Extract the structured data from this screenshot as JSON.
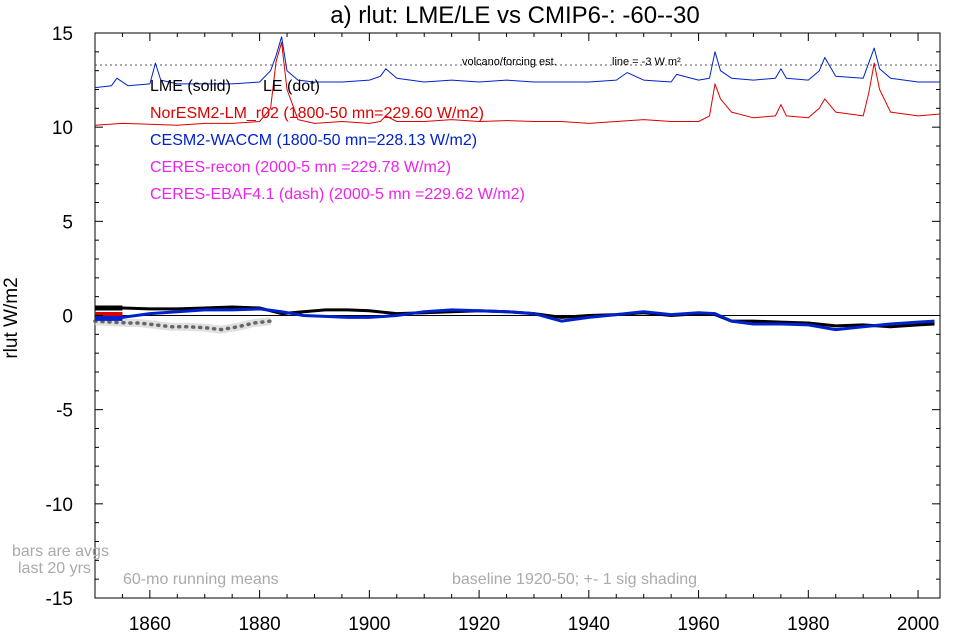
{
  "chart_data": {
    "type": "line",
    "title": "a) rlut: LME/LE vs CMIP6-: -60--30",
    "ylabel": "rlut W/m2",
    "xlim": [
      1850,
      2004
    ],
    "ylim": [
      -15,
      15
    ],
    "x_ticks": [
      1860,
      1880,
      1900,
      1920,
      1940,
      1960,
      1980,
      2000
    ],
    "y_ticks": [
      15,
      10,
      5,
      0,
      -5,
      -10,
      -15
    ],
    "grid": false,
    "legend": {
      "lme": "LME (solid)",
      "le": "LE (dot)",
      "noresm": "NorESM2-LM_r02 (1800-50 mn=229.60 W/m2)",
      "cesm": "CESM2-WACCM (1800-50 mn=228.13 W/m2)",
      "ceres_recon": "CERES-recon (2000-5 mn =229.78 W/m2)",
      "ceres_ebaf": "CERES-EBAF4.1 (dash) (2000-5 mn =229.62 W/m2)"
    },
    "annotations": {
      "volcano": "volcano/forcing est.",
      "line_label": "line = -3 W m²",
      "bars_line1": "bars are avgs",
      "bars_line2": "last 20 yrs",
      "running": "60-mo running means",
      "baseline": "baseline 1920-50; +- 1 sig shading"
    },
    "reference_lines": {
      "zero": 0,
      "volcano_line": 13.3
    },
    "colors": {
      "lme": "#000000",
      "le": "#666666",
      "noresm": "#dd0000",
      "cesm": "#0022cc",
      "ceres": "#ee22ee",
      "annotation_gray": "#aaaaaa"
    },
    "series": [
      {
        "name": "LME (solid)",
        "color": "#000000",
        "style": "solid",
        "x": [
          1850,
          1855,
          1860,
          1865,
          1870,
          1875,
          1880,
          1884,
          1888,
          1892,
          1896,
          1900,
          1905,
          1910,
          1915,
          1920,
          1925,
          1930,
          1935,
          1940,
          1945,
          1950,
          1955,
          1960,
          1963,
          1966,
          1970,
          1975,
          1980,
          1985,
          1990,
          1995,
          2000,
          2003
        ],
        "y": [
          0.4,
          0.4,
          0.35,
          0.35,
          0.4,
          0.45,
          0.4,
          0.1,
          0.2,
          0.3,
          0.3,
          0.25,
          0.1,
          0.15,
          0.2,
          0.25,
          0.2,
          0.1,
          -0.1,
          0.0,
          0.05,
          0.15,
          0.0,
          0.1,
          0.05,
          -0.3,
          -0.3,
          -0.35,
          -0.4,
          -0.55,
          -0.5,
          -0.6,
          -0.5,
          -0.45
        ]
      },
      {
        "name": "LE (dot)",
        "color": "#666666",
        "style": "dot",
        "x": [
          1850,
          1853,
          1856,
          1858,
          1861,
          1864,
          1867,
          1870,
          1873,
          1876,
          1879,
          1882
        ],
        "y": [
          -0.3,
          -0.35,
          -0.4,
          -0.4,
          -0.5,
          -0.6,
          -0.6,
          -0.65,
          -0.75,
          -0.6,
          -0.4,
          -0.3
        ]
      },
      {
        "name": "CESM2-WACCM",
        "color": "#0022cc",
        "style": "solid-thick",
        "x": [
          1850,
          1855,
          1860,
          1865,
          1870,
          1875,
          1880,
          1884,
          1888,
          1892,
          1896,
          1900,
          1905,
          1910,
          1915,
          1920,
          1925,
          1930,
          1935,
          1940,
          1945,
          1950,
          1955,
          1960,
          1963,
          1966,
          1970,
          1975,
          1980,
          1985,
          1990,
          1995,
          2000,
          2003
        ],
        "y": [
          -0.2,
          -0.1,
          0.1,
          0.2,
          0.3,
          0.3,
          0.35,
          0.2,
          0.0,
          -0.05,
          -0.1,
          -0.1,
          0.0,
          0.2,
          0.3,
          0.25,
          0.2,
          0.1,
          -0.3,
          -0.1,
          0.05,
          0.2,
          0.05,
          0.15,
          0.1,
          -0.3,
          -0.45,
          -0.45,
          -0.5,
          -0.75,
          -0.6,
          -0.45,
          -0.35,
          -0.3
        ]
      },
      {
        "name": "NorESM2-LM_r02",
        "color": "#dd0000",
        "style": "solid-thin",
        "x": [
          1850,
          1855,
          1860,
          1865,
          1870,
          1875,
          1880,
          1882,
          1883,
          1884,
          1885,
          1887,
          1890,
          1895,
          1900,
          1902,
          1903,
          1905,
          1910,
          1915,
          1920,
          1925,
          1930,
          1935,
          1940,
          1945,
          1950,
          1955,
          1960,
          1962,
          1963,
          1964,
          1966,
          1970,
          1974,
          1975,
          1976,
          1980,
          1982,
          1983,
          1985,
          1990,
          1991,
          1992,
          1993,
          1995,
          2000,
          2004
        ],
        "y": [
          10.1,
          10.2,
          10.15,
          10.1,
          10.2,
          10.2,
          10.3,
          11.0,
          13.5,
          14.5,
          12.0,
          10.4,
          10.2,
          10.3,
          10.2,
          10.3,
          10.6,
          10.3,
          10.3,
          10.4,
          10.3,
          10.35,
          10.3,
          10.3,
          10.2,
          10.3,
          10.4,
          10.3,
          10.3,
          10.6,
          12.3,
          11.5,
          10.8,
          10.5,
          10.6,
          11.2,
          10.6,
          10.5,
          11.0,
          11.5,
          10.8,
          10.6,
          11.8,
          13.4,
          12.0,
          10.8,
          10.6,
          10.7
        ]
      },
      {
        "name": "CESM2-WACCM (volcano est.)",
        "color": "#0022cc",
        "style": "solid-thin",
        "x": [
          1850,
          1853,
          1854,
          1856,
          1860,
          1861,
          1862,
          1865,
          1870,
          1875,
          1880,
          1882,
          1883,
          1884,
          1885,
          1887,
          1890,
          1895,
          1900,
          1902,
          1903,
          1905,
          1910,
          1915,
          1920,
          1925,
          1930,
          1935,
          1940,
          1945,
          1947,
          1950,
          1955,
          1956,
          1960,
          1962,
          1963,
          1964,
          1966,
          1970,
          1974,
          1975,
          1976,
          1980,
          1982,
          1983,
          1985,
          1990,
          1991,
          1992,
          1993,
          1995,
          2000,
          2004
        ],
        "y": [
          12.1,
          12.2,
          12.6,
          12.2,
          12.3,
          13.4,
          12.5,
          12.3,
          12.3,
          12.3,
          12.4,
          13.0,
          13.8,
          14.8,
          13.0,
          12.5,
          12.4,
          12.4,
          12.5,
          12.7,
          13.1,
          12.6,
          12.4,
          12.5,
          12.4,
          12.5,
          12.4,
          12.4,
          12.4,
          12.5,
          12.9,
          12.5,
          12.4,
          12.8,
          12.5,
          12.6,
          14.0,
          13.0,
          12.6,
          12.5,
          12.6,
          13.1,
          12.6,
          12.5,
          13.0,
          13.7,
          12.7,
          12.6,
          13.4,
          14.2,
          13.1,
          12.6,
          12.4,
          12.4
        ]
      }
    ],
    "bars": [
      {
        "name": "LME bar",
        "color": "#000000",
        "x": [
          1850,
          1855
        ],
        "y": 0.4
      },
      {
        "name": "NorESM bar",
        "color": "#dd0000",
        "x": [
          1850,
          1855
        ],
        "y": 0.05
      },
      {
        "name": "CESM bar",
        "color": "#0022cc",
        "x": [
          1850,
          1855
        ],
        "y": -0.15
      }
    ]
  }
}
